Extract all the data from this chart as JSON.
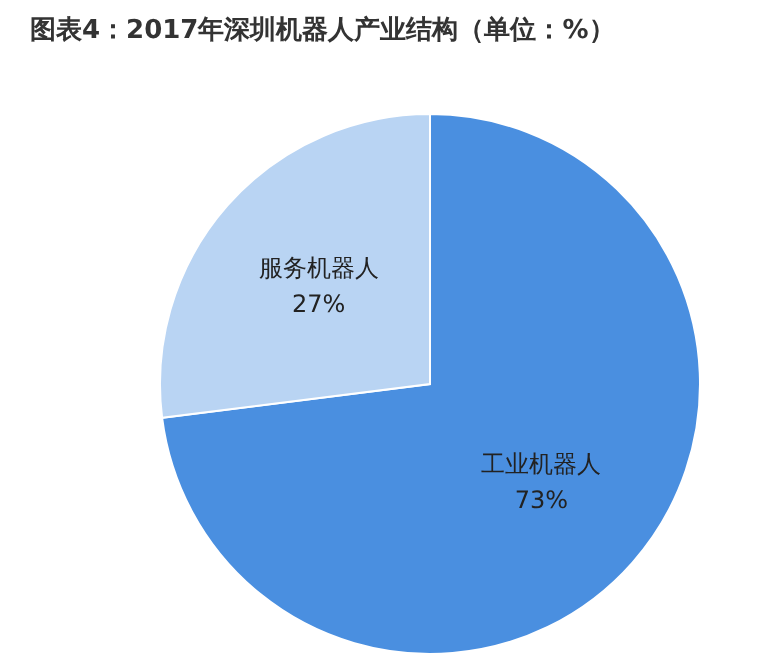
{
  "chart_data": {
    "type": "pie",
    "title": "图表4：2017年深圳机器人产业结构（单位：%）",
    "categories": [
      "工业机器人",
      "服务机器人"
    ],
    "values": [
      73,
      27
    ],
    "colors": [
      "#4a8fe0",
      "#b9d4f3"
    ],
    "value_labels": [
      "73%",
      "27%"
    ]
  }
}
